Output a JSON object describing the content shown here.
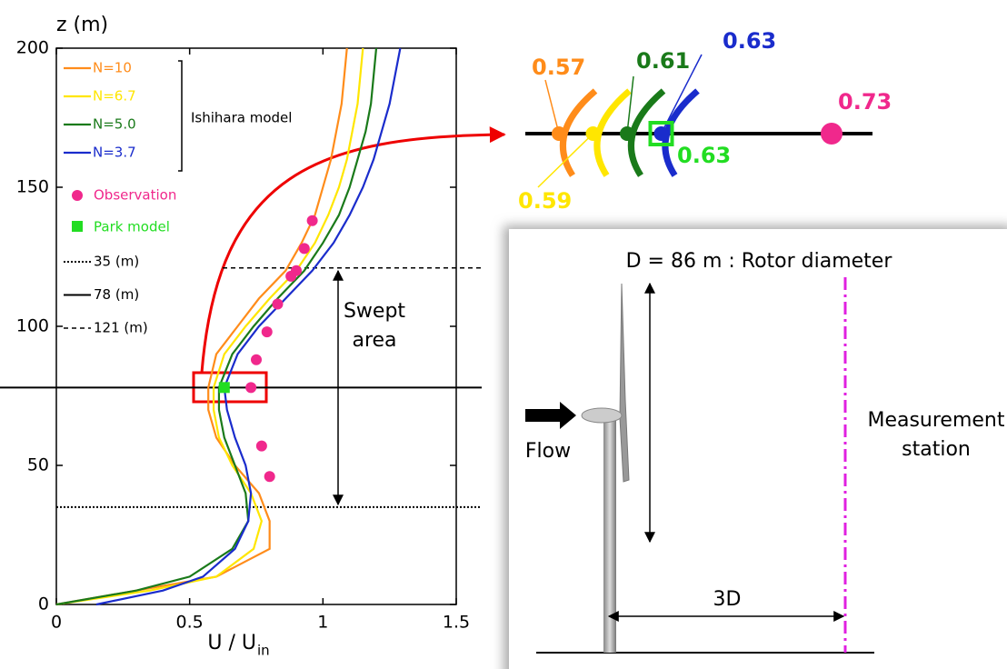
{
  "chart_data": {
    "type": "line",
    "y_label": "z (m)",
    "x_label": "U / U",
    "x_label_sub": "in",
    "xlim": [
      0,
      1.5
    ],
    "xticks": [
      0,
      0.5,
      1,
      1.5
    ],
    "ylim": [
      0,
      200
    ],
    "yticks": [
      0,
      50,
      100,
      150,
      200
    ],
    "z": [
      0,
      5,
      10,
      20,
      30,
      40,
      50,
      60,
      70,
      78,
      90,
      100,
      110,
      120,
      130,
      140,
      150,
      160,
      170,
      180,
      190,
      200
    ],
    "series": [
      {
        "name": "N=10",
        "color": "#ff8c1a",
        "values": [
          0,
          0.3,
          0.6,
          0.8,
          0.8,
          0.76,
          0.67,
          0.6,
          0.57,
          0.57,
          0.6,
          0.68,
          0.76,
          0.86,
          0.92,
          0.97,
          1.0,
          1.03,
          1.05,
          1.07,
          1.08,
          1.09
        ]
      },
      {
        "name": "N=6.7",
        "color": "#ffe600",
        "values": [
          0,
          0.35,
          0.6,
          0.74,
          0.77,
          0.73,
          0.66,
          0.61,
          0.59,
          0.59,
          0.63,
          0.71,
          0.8,
          0.9,
          0.97,
          1.02,
          1.06,
          1.09,
          1.11,
          1.13,
          1.14,
          1.15
        ]
      },
      {
        "name": "N=5.0",
        "color": "#1a7a1a",
        "values": [
          0,
          0.3,
          0.5,
          0.66,
          0.72,
          0.71,
          0.67,
          0.63,
          0.61,
          0.61,
          0.66,
          0.74,
          0.83,
          0.93,
          1.0,
          1.06,
          1.1,
          1.13,
          1.16,
          1.18,
          1.19,
          1.2
        ]
      },
      {
        "name": "N=3.7",
        "color": "#1a2ccc",
        "values": [
          0.15,
          0.4,
          0.55,
          0.67,
          0.72,
          0.73,
          0.71,
          0.67,
          0.64,
          0.63,
          0.68,
          0.76,
          0.86,
          0.96,
          1.04,
          1.1,
          1.15,
          1.19,
          1.22,
          1.25,
          1.27,
          1.29
        ]
      }
    ],
    "series_group_label": "Ishihara model",
    "observation": {
      "name": "Observation",
      "color": "#f0288c",
      "x": [
        0.96,
        0.93,
        0.9,
        0.88,
        0.83,
        0.79,
        0.75,
        0.73,
        0.77,
        0.8
      ],
      "y": [
        138,
        128,
        120,
        118,
        108,
        98,
        88,
        78,
        57,
        46
      ]
    },
    "park_model": {
      "name": "Park model",
      "color": "#22dd22",
      "x": [
        0.63
      ],
      "y": [
        78
      ]
    },
    "reference_lines": [
      {
        "name": "35 (m)",
        "value": 35,
        "dash": "dotted"
      },
      {
        "name": "78 (m)",
        "value": 78,
        "dash": "solid"
      },
      {
        "name": "121 (m)",
        "value": 121,
        "dash": "dashed"
      }
    ],
    "swept_area_label": [
      "Swept",
      "area"
    ]
  },
  "inset": {
    "values": [
      0.57,
      0.59,
      0.61,
      0.63
    ],
    "observation": 0.73,
    "park_model": 0.63
  },
  "diagram": {
    "rotor_label": "D = 86 m : Rotor diameter",
    "flow": "Flow",
    "station": [
      "Measurement",
      "station"
    ],
    "spacing": "3D"
  }
}
